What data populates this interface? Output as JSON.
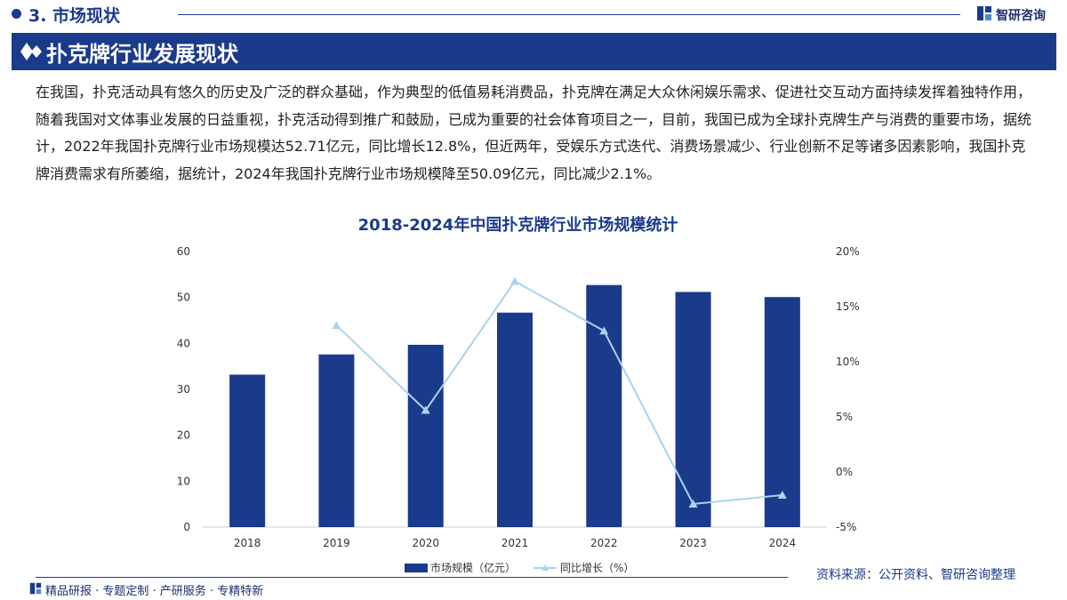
{
  "header": {
    "section_title": "3. 市场现状",
    "brand_name": "智研咨询"
  },
  "banner": {
    "title": "扑克牌行业发展现状"
  },
  "body_text": "在我国，扑克活动具有悠久的历史及广泛的群众基础，作为典型的低值易耗消费品，扑克牌在满足大众休闲娱乐需求、促进社交互动方面持续发挥着独特作用，随着我国对文体事业发展的日益重视，扑克活动得到推广和鼓励，已成为重要的社会体育项目之一，目前，我国已成为全球扑克牌生产与消费的重要市场，据统计，2022年我国扑克牌行业市场规模达52.71亿元，同比增长12.8%，但近两年，受娱乐方式迭代、消费场景减少、行业创新不足等诸多因素影响，我国扑克牌消费需求有所萎缩，据统计，2024年我国扑克牌行业市场规模降至50.09亿元，同比减少2.1%。",
  "chart_data": {
    "type": "bar",
    "title": "2018-2024年中国扑克牌行业市场规模统计",
    "categories": [
      "2018",
      "2019",
      "2020",
      "2021",
      "2022",
      "2023",
      "2024"
    ],
    "series": [
      {
        "name": "市场规模（亿元）",
        "type": "bar",
        "axis": "left",
        "color": "#1a3a8c",
        "values": [
          33.2,
          37.6,
          39.7,
          46.7,
          52.71,
          51.2,
          50.09
        ]
      },
      {
        "name": "同比增长（%）",
        "type": "line",
        "axis": "right",
        "color": "#a9d4ea",
        "values": [
          null,
          13.3,
          5.6,
          17.3,
          12.8,
          -2.9,
          -2.1
        ]
      }
    ],
    "y_left": {
      "min": 0,
      "max": 60,
      "ticks": [
        0,
        10,
        20,
        30,
        40,
        50,
        60
      ]
    },
    "y_right": {
      "min": -5,
      "max": 20,
      "ticks": [
        "-5%",
        "0%",
        "5%",
        "10%",
        "15%",
        "20%"
      ],
      "tick_values": [
        -5,
        0,
        5,
        10,
        15,
        20
      ]
    },
    "legend_position": "bottom"
  },
  "footer": {
    "tagline": "精品研报 · 专题定制 · 产研服务 · 专精特新",
    "source": "资料来源：公开资料、智研咨询整理"
  }
}
